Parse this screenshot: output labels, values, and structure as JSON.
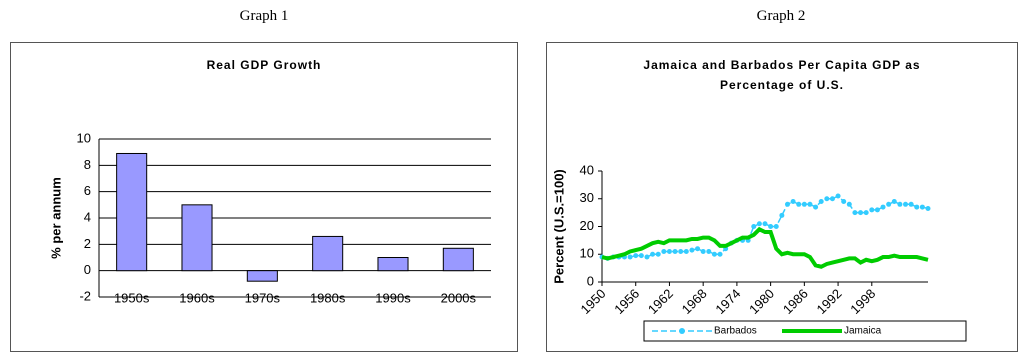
{
  "headings": [
    "Graph 1",
    "Graph 2"
  ],
  "chart_data": [
    {
      "type": "bar",
      "title": "Real GDP Growth",
      "ylabel": "% per annum",
      "categories": [
        "1950s",
        "1960s",
        "1970s",
        "1980s",
        "1990s",
        "2000s"
      ],
      "values": [
        8.9,
        5.0,
        -0.8,
        2.6,
        1.0,
        1.7
      ],
      "color": "#9999ff",
      "ylim": [
        -2,
        10
      ],
      "yticks": [
        -2,
        0,
        2,
        4,
        6,
        8,
        10
      ],
      "grid": true
    },
    {
      "type": "line",
      "title": "Jamaica and Barbados Per Capita GDP as Percentage of U.S.",
      "ylabel": "Percent (U.S.=100)",
      "x": [
        1950,
        1951,
        1952,
        1953,
        1954,
        1955,
        1956,
        1957,
        1958,
        1959,
        1960,
        1961,
        1962,
        1963,
        1964,
        1965,
        1966,
        1967,
        1968,
        1969,
        1970,
        1971,
        1972,
        1973,
        1974,
        1975,
        1976,
        1977,
        1978,
        1979,
        1980,
        1981,
        1982,
        1983,
        1984,
        1985,
        1986,
        1987,
        1988,
        1989,
        1990,
        1991,
        1992,
        1993,
        1994,
        1995,
        1996,
        1997,
        1998,
        1999,
        2000,
        2001,
        2002,
        2003,
        2004,
        2005,
        2006,
        2007,
        2008
      ],
      "series": [
        {
          "name": "Barbados",
          "color": "#33ccff",
          "values": [
            9,
            8.5,
            9,
            9,
            9,
            9,
            9.5,
            9.5,
            9,
            10,
            10,
            11,
            11,
            11,
            11,
            11,
            11.5,
            12,
            11,
            11,
            10,
            10,
            12,
            14,
            15,
            15,
            15,
            20,
            21,
            21,
            20,
            20,
            24,
            28,
            29,
            28,
            28,
            28,
            27,
            29,
            30,
            30,
            31,
            29,
            28,
            25,
            25,
            25,
            26,
            26,
            27,
            28,
            29,
            28,
            28,
            28,
            27,
            27,
            26.5
          ]
        },
        {
          "name": "Jamaica",
          "color": "#00cc00",
          "values": [
            9,
            8.5,
            9,
            9.5,
            10,
            11,
            11.5,
            12,
            13,
            14,
            14.5,
            14,
            15,
            15,
            15,
            15,
            15.5,
            15.5,
            16,
            16,
            15,
            13,
            13,
            14,
            15,
            16,
            16,
            17,
            19,
            18,
            18,
            12,
            10,
            10.5,
            10,
            10,
            10,
            9,
            6,
            5.5,
            6.5,
            7,
            7.5,
            8,
            8.5,
            8.5,
            7,
            8,
            7.5,
            8,
            9,
            9,
            9.5,
            9,
            9,
            9,
            9,
            8.5,
            8
          ]
        }
      ],
      "xlim": [
        1950,
        2008
      ],
      "xticks": [
        1950,
        1956,
        1962,
        1968,
        1974,
        1980,
        1986,
        1992,
        1998
      ],
      "ylim": [
        0,
        40
      ],
      "yticks": [
        0,
        10,
        20,
        30,
        40
      ],
      "grid": false,
      "legend": "bottom"
    }
  ]
}
